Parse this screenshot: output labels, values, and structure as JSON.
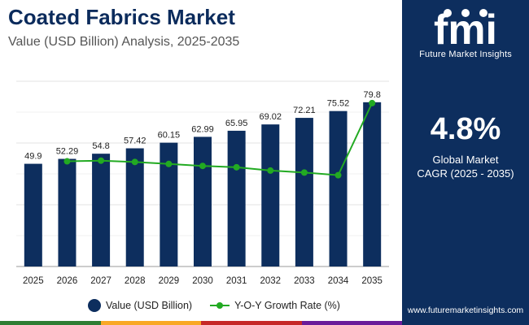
{
  "header": {
    "title": "Coated Fabrics Market",
    "subtitle": "Value (USD Billion) Analysis, 2025-2035"
  },
  "sidebar": {
    "logo_text": "fmi",
    "logo_tagline": "Future Market Insights",
    "cagr_value": "4.8%",
    "cagr_label_line1": "Global Market",
    "cagr_label_line2": "CAGR (2025 - 2035)",
    "website": "www.futuremarketinsights.com"
  },
  "legend": {
    "value_label": "Value (USD Billion)",
    "growth_label": "Y-O-Y Growth Rate (%)"
  },
  "colors": {
    "bar": "#0d2e5e",
    "line": "#22aa22",
    "sidebar": "#0d2e5e",
    "bottom_bar": [
      "#2e7d32",
      "#f9a825",
      "#c62828",
      "#6a1b9a"
    ]
  },
  "chart_data": {
    "type": "bar",
    "title": "Coated Fabrics Market",
    "subtitle": "Value (USD Billion) Analysis, 2025-2035",
    "categories": [
      "2025",
      "2026",
      "2027",
      "2028",
      "2029",
      "2030",
      "2031",
      "2032",
      "2033",
      "2034",
      "2035"
    ],
    "series": [
      {
        "name": "Value (USD Billion)",
        "type": "bar",
        "values": [
          49.9,
          52.29,
          54.8,
          57.42,
          60.15,
          62.99,
          65.95,
          69.02,
          72.21,
          75.52,
          79.8
        ],
        "labels": [
          "49.9",
          "52.29",
          "54.8",
          "57.42",
          "60.15",
          "62.99",
          "65.95",
          "69.02",
          "72.21",
          "75.52",
          "79.8"
        ]
      },
      {
        "name": "Y-O-Y Growth Rate (%)",
        "type": "line",
        "values": [
          null,
          4.79,
          4.8,
          4.78,
          4.75,
          4.72,
          4.7,
          4.65,
          4.62,
          4.58,
          5.67
        ]
      }
    ],
    "ylim": [
      0,
      90
    ],
    "y2lim": [
      3.2,
      6.0
    ],
    "grid": true,
    "legend_position": "bottom"
  }
}
